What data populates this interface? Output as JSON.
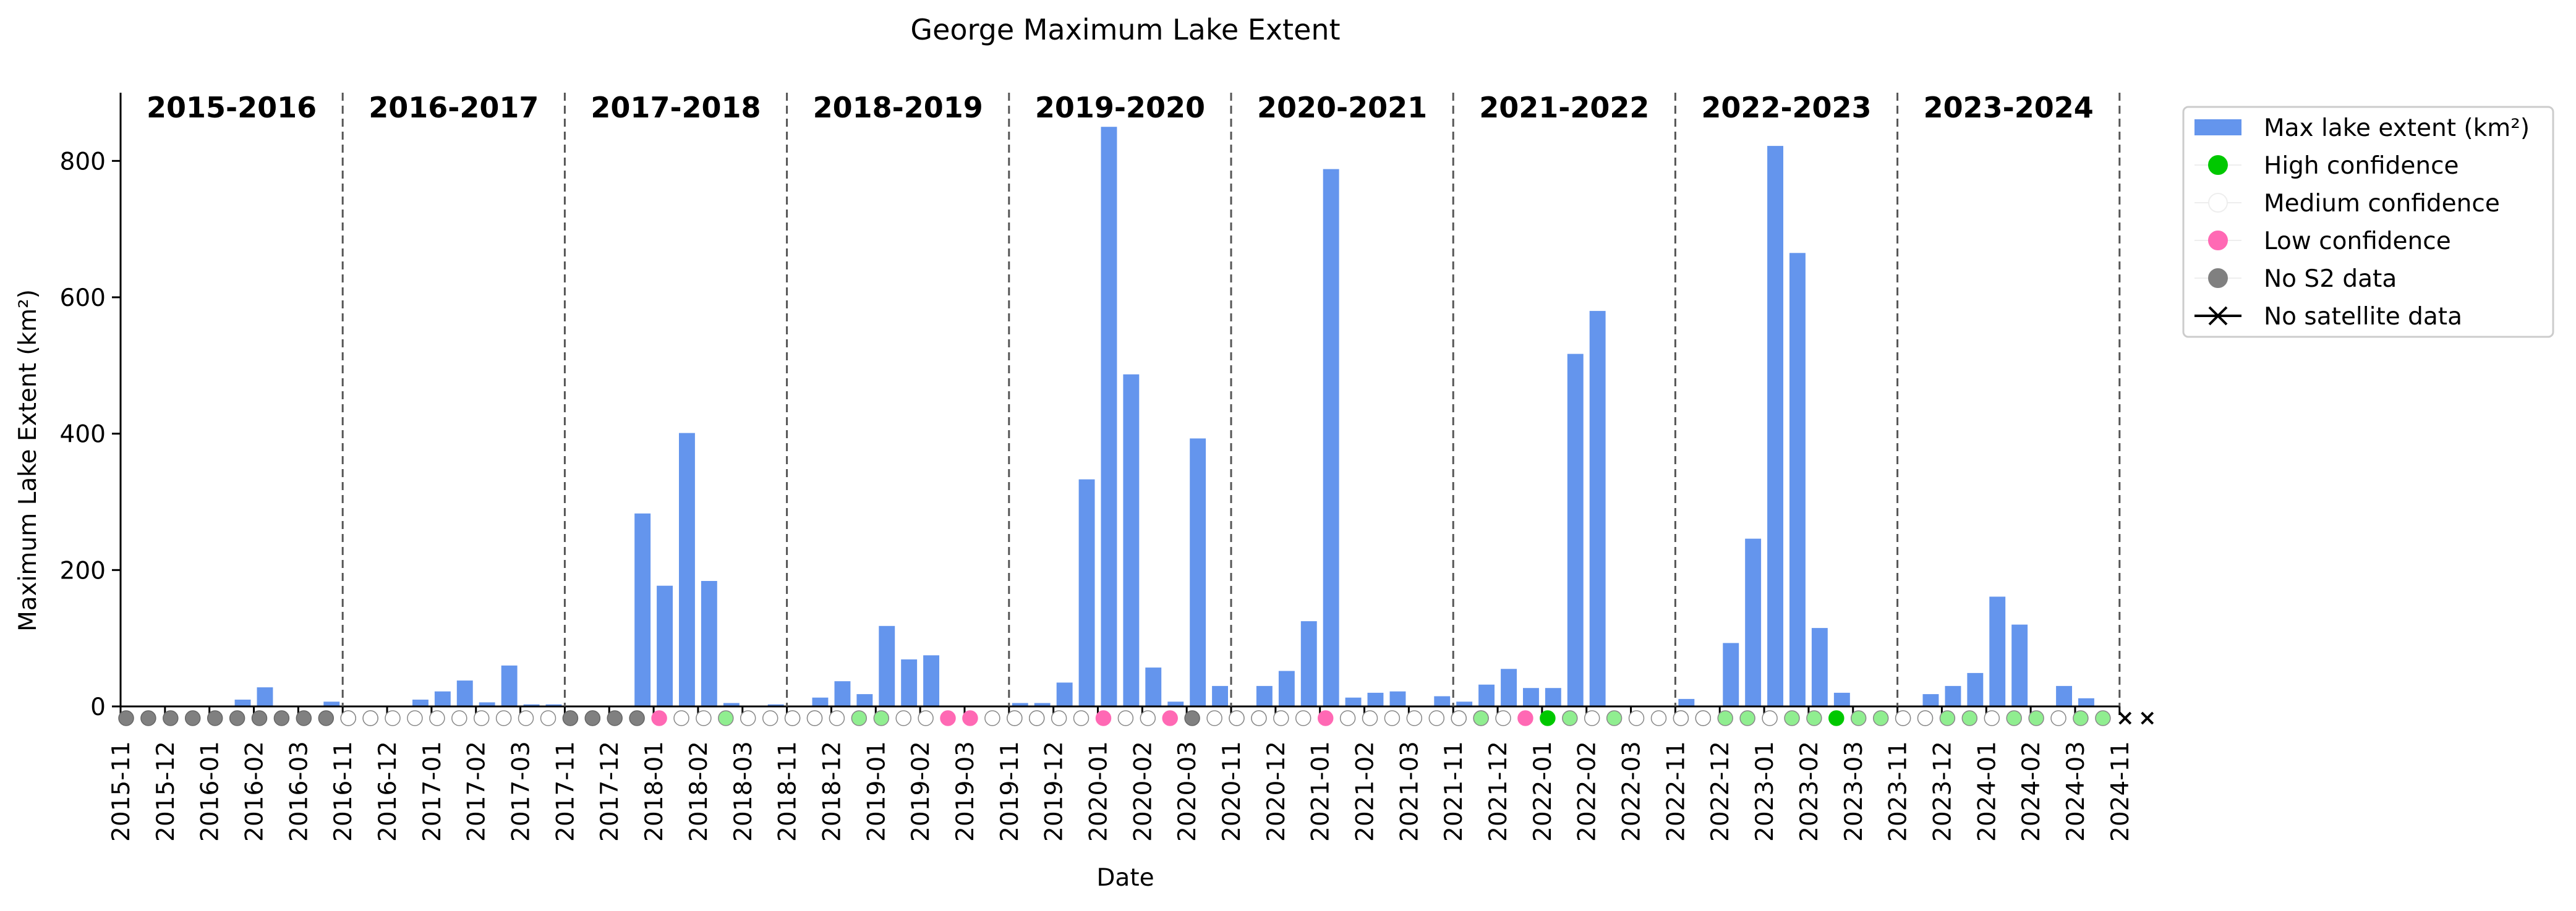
{
  "chart_data": {
    "type": "bar",
    "title": "George Maximum Lake Extent",
    "xlabel": "Date",
    "ylabel": "Maximum Lake Extent (km²)",
    "ylim": [
      0,
      900
    ],
    "yticks": [
      0,
      200,
      400,
      600,
      800
    ],
    "grid": false,
    "legend_position": "outside-top-right",
    "colors": {
      "bar": "#6495ed",
      "high": "#00c800",
      "high_light": "#90ee90",
      "medium": "#ffffff",
      "low": "#ff69b4",
      "nodata": "#808080",
      "divider": "#555555"
    },
    "series": [
      {
        "name": "Max lake extent (km²)"
      }
    ],
    "legend": [
      {
        "label": "Max lake extent (km²)",
        "kind": "bar"
      },
      {
        "label": "High confidence",
        "kind": "high"
      },
      {
        "label": "Medium confidence",
        "kind": "medium"
      },
      {
        "label": "Low confidence",
        "kind": "low"
      },
      {
        "label": "No S2 data",
        "kind": "nodata"
      },
      {
        "label": "No satellite data",
        "kind": "nosat"
      }
    ],
    "seasons": [
      {
        "label": "2015-2016",
        "ticks": [
          "2015-11",
          "2015-12",
          "2016-01",
          "2016-02",
          "2016-03"
        ],
        "values": [
          0,
          0,
          0,
          0,
          0,
          0,
          10,
          28,
          0,
          0,
          7,
          0
        ],
        "confidence": [
          "nodata",
          "nodata",
          "nodata",
          "nodata",
          "nodata",
          "nodata",
          "nodata",
          "nodata",
          "nodata",
          "nodata",
          "nodata",
          "nodata"
        ]
      },
      {
        "label": "2016-2017",
        "ticks": [
          "2016-11",
          "2016-12",
          "2017-01",
          "2017-02",
          "2017-03"
        ],
        "values": [
          0,
          0,
          0,
          0,
          10,
          22,
          38,
          6,
          60,
          3,
          3,
          0
        ],
        "confidence": [
          "medium",
          "medium",
          "medium",
          "medium",
          "medium",
          "medium",
          "medium",
          "medium",
          "medium",
          "medium",
          "medium",
          "medium"
        ]
      },
      {
        "label": "2017-2018",
        "ticks": [
          "2017-11",
          "2017-12",
          "2018-01",
          "2018-02",
          "2018-03"
        ],
        "values": [
          0,
          0,
          0,
          0,
          283,
          177,
          401,
          184,
          5,
          0,
          0,
          0
        ],
        "confidence": [
          "nodata",
          "nodata",
          "nodata",
          "nodata",
          "low",
          "medium",
          "medium",
          "high_light",
          "medium",
          "medium",
          "medium",
          "medium"
        ]
      },
      {
        "label": "2018-2019",
        "ticks": [
          "2018-11",
          "2018-12",
          "2019-01",
          "2019-02",
          "2019-03"
        ],
        "values": [
          3,
          0,
          13,
          37,
          18,
          118,
          69,
          75,
          0,
          0,
          0,
          0
        ],
        "confidence": [
          "medium",
          "medium",
          "medium",
          "high_light",
          "high_light",
          "medium",
          "medium",
          "low",
          "low",
          "medium",
          "medium",
          "medium"
        ]
      },
      {
        "label": "2019-2020",
        "ticks": [
          "2019-11",
          "2019-12",
          "2020-01",
          "2020-02",
          "2020-03"
        ],
        "values": [
          0,
          5,
          5,
          35,
          333,
          850,
          487,
          57,
          7,
          393,
          0,
          0
        ],
        "confidence": [
          "medium",
          "medium",
          "medium",
          "medium",
          "low",
          "medium",
          "medium",
          "low",
          "nodata",
          "medium",
          "medium",
          "medium"
        ]
      },
      {
        "label": "2020-2021",
        "ticks": [
          "2020-11",
          "2020-12",
          "2021-01",
          "2021-02",
          "2021-03"
        ],
        "values": [
          30,
          0,
          30,
          52,
          125,
          788,
          13,
          20,
          22,
          0,
          0,
          0
        ],
        "confidence": [
          "medium",
          "medium",
          "medium",
          "medium",
          "low",
          "medium",
          "medium",
          "medium",
          "medium",
          "medium",
          "medium",
          "medium"
        ]
      },
      {
        "label": "2021-2022",
        "ticks": [
          "2021-11",
          "2021-12",
          "2022-01",
          "2022-02",
          "2022-03"
        ],
        "values": [
          15,
          7,
          32,
          55,
          27,
          27,
          517,
          580,
          0,
          0,
          0,
          0
        ],
        "confidence": [
          "medium",
          "high_light",
          "medium",
          "low",
          "high",
          "high_light",
          "medium",
          "high_light",
          "medium",
          "medium",
          "medium",
          "medium"
        ]
      },
      {
        "label": "2022-2023",
        "ticks": [
          "2022-11",
          "2022-12",
          "2023-01",
          "2023-02",
          "2023-03"
        ],
        "values": [
          0,
          11,
          0,
          93,
          246,
          822,
          665,
          115,
          20,
          0,
          0,
          0
        ],
        "confidence": [
          "medium",
          "medium",
          "high_light",
          "high_light",
          "medium",
          "high_light",
          "high_light",
          "high",
          "high_light",
          "high_light",
          "medium",
          "medium"
        ]
      },
      {
        "label": "2023-2024",
        "ticks": [
          "2023-11",
          "2023-12",
          "2024-01",
          "2024-02",
          "2024-03",
          "2024-11"
        ],
        "values": [
          0,
          0,
          18,
          30,
          49,
          161,
          120,
          0,
          30,
          12,
          0,
          0
        ],
        "confidence": [
          "medium",
          "medium",
          "high_light",
          "high_light",
          "medium",
          "high_light",
          "high_light",
          "medium",
          "high_light",
          "high_light",
          "nosat",
          "nosat"
        ]
      }
    ]
  }
}
